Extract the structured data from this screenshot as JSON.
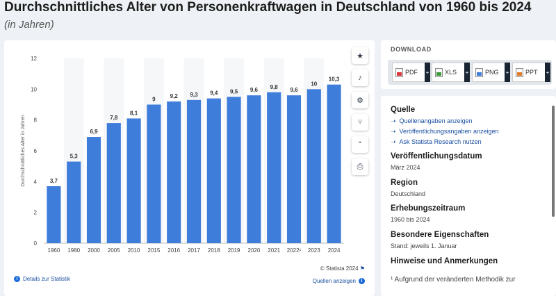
{
  "title": "Durchschnittliches Alter von Personenkraftwagen in Deutschland von 1960 bis 2024",
  "subtitle": "(in Jahren)",
  "chart_data": {
    "type": "bar",
    "categories": [
      "1960",
      "1980",
      "2000",
      "2005",
      "2010",
      "2015",
      "2016",
      "2017",
      "2018",
      "2019",
      "2020",
      "2021",
      "2022¹",
      "2023",
      "2024"
    ],
    "values": [
      3.7,
      5.3,
      6.9,
      7.8,
      8.1,
      9,
      9.2,
      9.3,
      9.4,
      9.5,
      9.6,
      9.8,
      9.6,
      10,
      10.3
    ],
    "value_labels": [
      "3,7",
      "5,3",
      "6,9",
      "7,8",
      "8,1",
      "9",
      "9,2",
      "9,3",
      "9,4",
      "9,5",
      "9,6",
      "9,8",
      "9,6",
      "10",
      "10,3"
    ],
    "ylabel": "Durchschnittliches Alter in Jahren",
    "ylim": [
      0,
      12
    ],
    "yticks": [
      "0",
      "2",
      "4",
      "6",
      "8",
      "10",
      "12"
    ],
    "bar_color": "#3f7ddb",
    "grid": false
  },
  "side_buttons": [
    {
      "icon": "star-icon",
      "glyph": "★"
    },
    {
      "icon": "bell-icon",
      "glyph": "♪"
    },
    {
      "icon": "gear-icon",
      "glyph": "⚙"
    },
    {
      "icon": "share-icon",
      "glyph": "⑂"
    },
    {
      "icon": "quote-icon",
      "glyph": "“"
    },
    {
      "icon": "print-icon",
      "glyph": "⎙"
    }
  ],
  "footer": {
    "copyright": "© Statista 2024",
    "details": "Details zur Statistik",
    "sources": "Quellen anzeigen"
  },
  "download": {
    "title": "DOWNLOAD",
    "buttons": [
      {
        "label": "PDF",
        "color": "#d9343a"
      },
      {
        "label": "XLS",
        "color": "#3c9a3c"
      },
      {
        "label": "PNG",
        "color": "#3f7ddb"
      },
      {
        "label": "PPT",
        "color": "#e07b28"
      }
    ]
  },
  "info": {
    "source_head": "Quelle",
    "source_links": [
      "Quellenangaben anzeigen",
      "Veröffentlichungsangaben anzeigen",
      "Ask Statista Research nutzen"
    ],
    "pubdate_head": "Veröffentlichungsdatum",
    "pubdate": "März 2024",
    "region_head": "Region",
    "region": "Deutschland",
    "period_head": "Erhebungszeitraum",
    "period": "1960 bis 2024",
    "props_head": "Besondere Eigenschaften",
    "props": "Stand: jeweils 1. Januar",
    "notes_head": "Hinweise und Anmerkungen",
    "notes": "¹ Aufgrund der veränderten Methodik zur"
  }
}
